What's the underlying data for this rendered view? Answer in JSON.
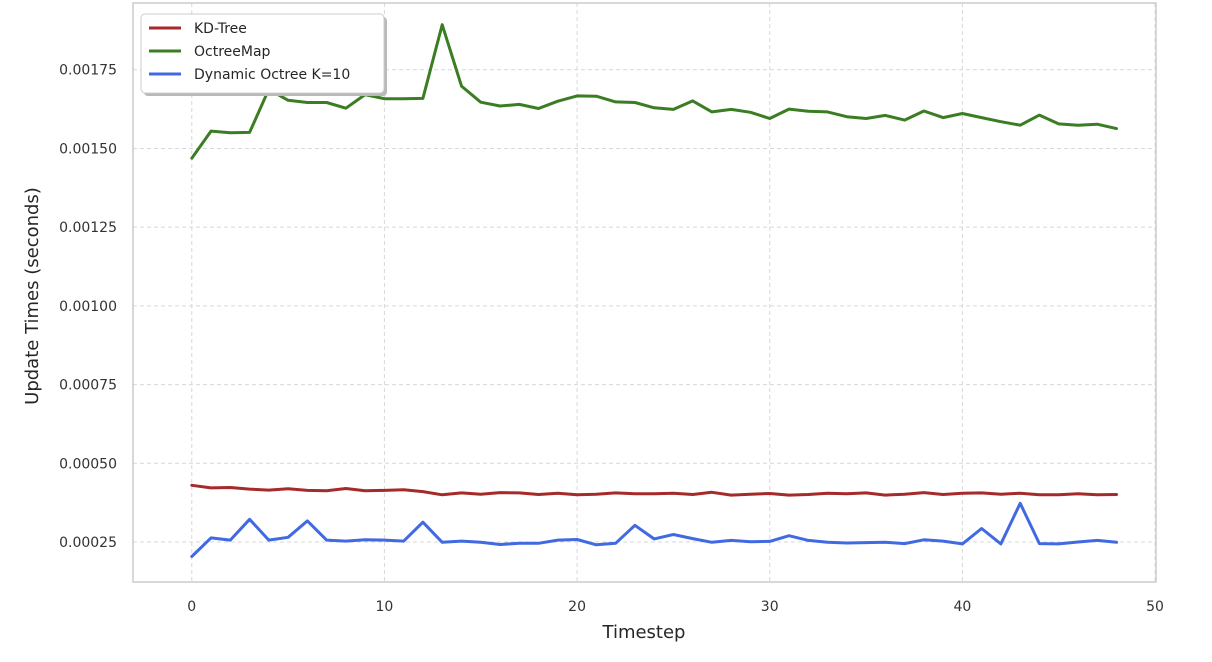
{
  "chart_data": {
    "type": "line",
    "title": "",
    "xlabel": "Timestep",
    "ylabel": "Update Times (seconds)",
    "xlim": [
      -3.05,
      50.05
    ],
    "ylim": [
      0.000123,
      0.001962
    ],
    "xticks": [
      0,
      10,
      20,
      30,
      40,
      50
    ],
    "yticks": [
      0.00025,
      0.0005,
      0.00075,
      0.001,
      0.00125,
      0.0015,
      0.00175
    ],
    "ytick_labels": [
      "0.00025",
      "0.00050",
      "0.00075",
      "0.00100",
      "0.00125",
      "0.00150",
      "0.00175"
    ],
    "grid": true,
    "legend_position": "top-left",
    "x": [
      0,
      1,
      2,
      3,
      4,
      5,
      6,
      7,
      8,
      9,
      10,
      11,
      12,
      13,
      14,
      15,
      16,
      17,
      18,
      19,
      20,
      21,
      22,
      23,
      24,
      25,
      26,
      27,
      28,
      29,
      30,
      31,
      32,
      33,
      34,
      35,
      36,
      37,
      38,
      39,
      40,
      41,
      42,
      43,
      44,
      45,
      46,
      47,
      48
    ],
    "series": [
      {
        "name": "KD-Tree",
        "color": "#a52a2a",
        "values": [
          0.00043,
          0.000422,
          0.000423,
          0.000418,
          0.000415,
          0.000419,
          0.000414,
          0.000413,
          0.00042,
          0.000413,
          0.000414,
          0.000416,
          0.00041,
          0.0004,
          0.000406,
          0.000402,
          0.000407,
          0.000406,
          0.000401,
          0.000405,
          0.0004,
          0.000402,
          0.000406,
          0.000403,
          0.000403,
          0.000405,
          0.000401,
          0.000408,
          0.000399,
          0.000402,
          0.000404,
          0.000399,
          0.000401,
          0.000405,
          0.000403,
          0.000406,
          0.000399,
          0.000402,
          0.000407,
          0.000401,
          0.000405,
          0.000406,
          0.000402,
          0.000405,
          0.0004,
          0.0004,
          0.000403,
          0.0004,
          0.000401
        ]
      },
      {
        "name": "OctreeMap",
        "color": "#3b7d23",
        "values": [
          0.001469,
          0.001555,
          0.00155,
          0.001551,
          0.001688,
          0.001653,
          0.001646,
          0.001646,
          0.001628,
          0.001671,
          0.001658,
          0.001658,
          0.001659,
          0.001893,
          0.001698,
          0.001647,
          0.001635,
          0.00164,
          0.001627,
          0.00165,
          0.001667,
          0.001666,
          0.001648,
          0.001646,
          0.001629,
          0.001624,
          0.001651,
          0.001616,
          0.001624,
          0.001615,
          0.001595,
          0.001625,
          0.001618,
          0.001616,
          0.001601,
          0.001595,
          0.001605,
          0.00159,
          0.001619,
          0.001598,
          0.001611,
          0.001598,
          0.001585,
          0.001574,
          0.001606,
          0.001578,
          0.001574,
          0.001577,
          0.001563
        ]
      },
      {
        "name": "Dynamic Octree K=10",
        "color": "#4169e1",
        "values": [
          0.000204,
          0.000263,
          0.000256,
          0.000322,
          0.000256,
          0.000265,
          0.000317,
          0.000256,
          0.000253,
          0.000257,
          0.000256,
          0.000253,
          0.000313,
          0.000249,
          0.000253,
          0.000249,
          0.000242,
          0.000246,
          0.000246,
          0.000256,
          0.000258,
          0.000241,
          0.000246,
          0.000303,
          0.00026,
          0.000274,
          0.000261,
          0.000249,
          0.000255,
          0.000251,
          0.000252,
          0.00027,
          0.000255,
          0.000249,
          0.000247,
          0.000248,
          0.000249,
          0.000245,
          0.000257,
          0.000253,
          0.000244,
          0.000293,
          0.000244,
          0.000373,
          0.000245,
          0.000244,
          0.00025,
          0.000255,
          0.000249
        ]
      }
    ]
  }
}
